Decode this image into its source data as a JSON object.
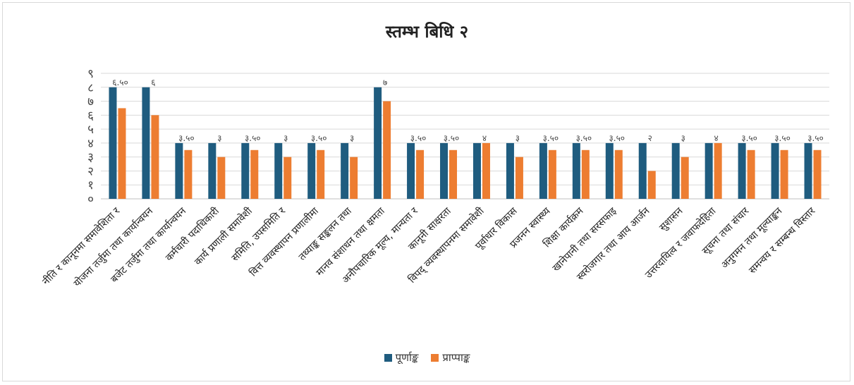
{
  "chart_data": {
    "type": "bar",
    "title": "स्तम्भ बिधि २",
    "categories": [
      "नीति र कानूनमा समावेशिता र",
      "योजना तर्जुमा तथा कार्यान्वयन",
      "बजेट तर्जुमा तथा कार्यान्वयन",
      "कर्मचारी पदाधिकारी",
      "कार्य प्रणाली समावेशी",
      "समिति, उपसमिति र",
      "वित्त व्यवस्थापन प्रणालीमा",
      "तथ्याङ्क सङ्कलन तथा",
      "मानव संशाधन तथा क्षमता",
      "अनौपचारिक मूल्य, मान्यता र",
      "कानूनी साक्षरता",
      "विपद् व्यवस्थापनमा समावेशी",
      "पूर्वाधार विकास",
      "प्रजनन स्वास्थ्य",
      "शिक्षा कार्यक्रम",
      "खानेपानी तथा सरसफाइ",
      "स्वरोजगार तथा आय आर्जन",
      "सुशासन",
      "उत्तरदायित्व र जवाफदेहिता",
      "सूचना तथा संचार",
      "अनुगमन तथा मूल्याङ्कन",
      "समन्वय र सम्बन्ध विस्तार"
    ],
    "series": [
      {
        "name": "पूर्णाङ्क",
        "color": "#1f5c7f",
        "values": [
          8,
          8,
          4,
          4,
          4,
          4,
          4,
          4,
          8,
          4,
          4,
          4,
          4,
          4,
          4,
          4,
          4,
          4,
          4,
          4,
          4,
          4
        ]
      },
      {
        "name": "प्राप्पाङ्क",
        "color": "#ed7d31",
        "values": [
          6.5,
          6,
          3.5,
          3,
          3.5,
          3,
          3.5,
          3,
          7,
          3.5,
          3.5,
          4,
          3,
          3.5,
          3.5,
          3.5,
          2,
          3,
          4,
          3.5,
          3.5,
          3.5
        ]
      }
    ],
    "data_labels": [
      "६.५०",
      "६",
      "३.५०",
      "३",
      "३.५०",
      "३",
      "३.५०",
      "३",
      "७",
      "३.५०",
      "३.५०",
      "४",
      "३",
      "३.५०",
      "३.५०",
      "३.५०",
      "२",
      "३",
      "४",
      "३.५०",
      "३.५०",
      "३.५०"
    ],
    "y_tick_labels": [
      "०",
      "१",
      "२",
      "३",
      "४",
      "५",
      "६",
      "७",
      "८",
      "९"
    ],
    "ylim": [
      0,
      9
    ],
    "grid": true,
    "legend_position": "bottom"
  }
}
